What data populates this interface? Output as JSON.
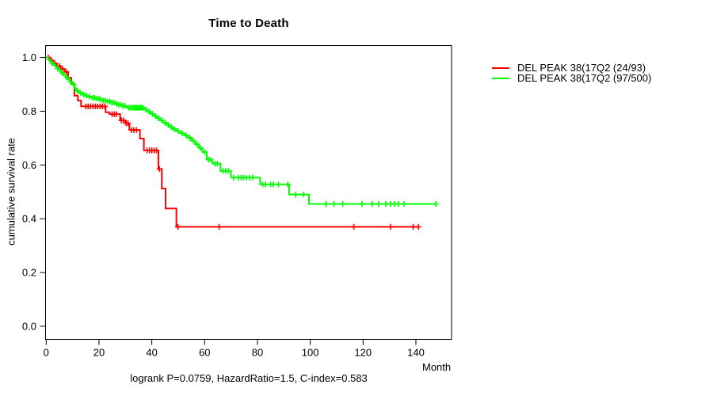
{
  "title": "Time to Death",
  "axes": {
    "x_label": "Month",
    "y_label": "cumulative survival rate",
    "x_ticks": [
      0,
      20,
      40,
      60,
      80,
      100,
      120,
      140
    ],
    "y_ticks": [
      "0.0",
      "0.2",
      "0.4",
      "0.6",
      "0.8",
      "1.0"
    ]
  },
  "legend": {
    "items": [
      {
        "label": "DEL PEAK 38(17Q2 (24/93)",
        "color": "#ff0000"
      },
      {
        "label": "DEL PEAK 38(17Q2 (97/500)",
        "color": "#00ff00"
      }
    ]
  },
  "annotation": "logrank P=0.0759, HazardRatio=1.5, C-index=0.583",
  "chart_data": {
    "type": "line",
    "subtype": "kaplan-meier-step-curves",
    "title": "Time to Death",
    "xlabel": "Month",
    "ylabel": "cumulative survival rate",
    "xlim": [
      0,
      153
    ],
    "ylim": [
      0,
      1
    ],
    "grid": false,
    "legend_position": "right-outside",
    "frame_box": true,
    "series": [
      {
        "name": "DEL PEAK 38(17Q2 (24/93)",
        "color": "#ff0000",
        "end_month": 141,
        "steps": [
          [
            0,
            1.0
          ],
          [
            1.5,
            0.989
          ],
          [
            2.6,
            0.978
          ],
          [
            4.0,
            0.968
          ],
          [
            5.5,
            0.957
          ],
          [
            7.0,
            0.946
          ],
          [
            8.3,
            0.924
          ],
          [
            9.5,
            0.902
          ],
          [
            10.7,
            0.858
          ],
          [
            12.0,
            0.84
          ],
          [
            13.2,
            0.818
          ],
          [
            22.5,
            0.796
          ],
          [
            24.0,
            0.789
          ],
          [
            28.0,
            0.766
          ],
          [
            30.0,
            0.755
          ],
          [
            31.5,
            0.73
          ],
          [
            35.5,
            0.698
          ],
          [
            37.0,
            0.654
          ],
          [
            42.5,
            0.585
          ],
          [
            43.8,
            0.512
          ],
          [
            45.2,
            0.438
          ],
          [
            49.3,
            0.37
          ]
        ],
        "censor_months": [
          0.8,
          2.0,
          3.3,
          5.0,
          6.2,
          7.6,
          15.0,
          15.9,
          16.8,
          17.7,
          18.6,
          19.5,
          20.4,
          21.3,
          22.2,
          25.0,
          25.8,
          26.6,
          28.5,
          29.3,
          30.3,
          31.0,
          32.3,
          33.2,
          34.2,
          38.2,
          39.1,
          40.0,
          40.9,
          41.8,
          42.9,
          49.9,
          65.5,
          116.5,
          130.4,
          139.0,
          141.0
        ]
      },
      {
        "name": "DEL PEAK 38(17Q2 (97/500)",
        "color": "#00ff00",
        "end_month": 148,
        "steps": [
          [
            0,
            1.0
          ],
          [
            0.7,
            0.993
          ],
          [
            1.4,
            0.986
          ],
          [
            2.1,
            0.979
          ],
          [
            2.8,
            0.972
          ],
          [
            3.5,
            0.965
          ],
          [
            4.2,
            0.958
          ],
          [
            5.0,
            0.95
          ],
          [
            5.8,
            0.942
          ],
          [
            6.6,
            0.934
          ],
          [
            7.4,
            0.926
          ],
          [
            8.2,
            0.918
          ],
          [
            9.0,
            0.91
          ],
          [
            9.8,
            0.898
          ],
          [
            10.6,
            0.886
          ],
          [
            11.4,
            0.876
          ],
          [
            12.4,
            0.868
          ],
          [
            13.4,
            0.862
          ],
          [
            14.6,
            0.858
          ],
          [
            16.0,
            0.854
          ],
          [
            17.4,
            0.85
          ],
          [
            18.8,
            0.847
          ],
          [
            20.2,
            0.843
          ],
          [
            21.6,
            0.84
          ],
          [
            23.0,
            0.836
          ],
          [
            24.4,
            0.832
          ],
          [
            25.8,
            0.828
          ],
          [
            27.2,
            0.824
          ],
          [
            28.6,
            0.82
          ],
          [
            30.0,
            0.816
          ],
          [
            31.0,
            0.813
          ],
          [
            37.0,
            0.806
          ],
          [
            38.2,
            0.798
          ],
          [
            39.4,
            0.79
          ],
          [
            40.6,
            0.782
          ],
          [
            41.8,
            0.774
          ],
          [
            43.0,
            0.766
          ],
          [
            44.2,
            0.757
          ],
          [
            45.4,
            0.749
          ],
          [
            46.6,
            0.741
          ],
          [
            47.8,
            0.733
          ],
          [
            49.2,
            0.726
          ],
          [
            50.8,
            0.718
          ],
          [
            52.2,
            0.71
          ],
          [
            53.6,
            0.701
          ],
          [
            55.0,
            0.69
          ],
          [
            56.4,
            0.677
          ],
          [
            57.8,
            0.663
          ],
          [
            59.2,
            0.648
          ],
          [
            60.8,
            0.62
          ],
          [
            63.0,
            0.605
          ],
          [
            66.0,
            0.578
          ],
          [
            70.0,
            0.553
          ],
          [
            81.0,
            0.528
          ],
          [
            92.0,
            0.49
          ],
          [
            99.5,
            0.455
          ]
        ],
        "censor_months": [
          2.2,
          4.4,
          6.1,
          7.7,
          9.2,
          10.5,
          11.8,
          13.1,
          14.2,
          15.3,
          16.4,
          17.5,
          18.3,
          19.1,
          19.9,
          20.7,
          21.6,
          22.5,
          23.3,
          24.1,
          24.9,
          25.7,
          26.6,
          27.4,
          28.2,
          29.0,
          29.8,
          31.2,
          31.8,
          32.4,
          33.0,
          33.4,
          33.8,
          34.2,
          34.6,
          35.0,
          35.4,
          35.8,
          36.2,
          36.6,
          37.8,
          39.0,
          40.2,
          41.4,
          42.6,
          43.8,
          45.0,
          46.2,
          47.4,
          48.6,
          50.0,
          51.5,
          53.0,
          54.4,
          55.7,
          57.1,
          58.5,
          60.0,
          61.5,
          62.2,
          64.0,
          64.8,
          67.0,
          68.0,
          69.0,
          71.0,
          72.8,
          73.8,
          74.8,
          75.8,
          77.0,
          78.2,
          82.0,
          83.0,
          85.0,
          86.0,
          88.0,
          91.5,
          94.5,
          97.5,
          106.0,
          109.0,
          112.3,
          119.6,
          123.5,
          125.9,
          128.6,
          130.4,
          131.9,
          133.4,
          135.5,
          147.5
        ]
      }
    ]
  }
}
